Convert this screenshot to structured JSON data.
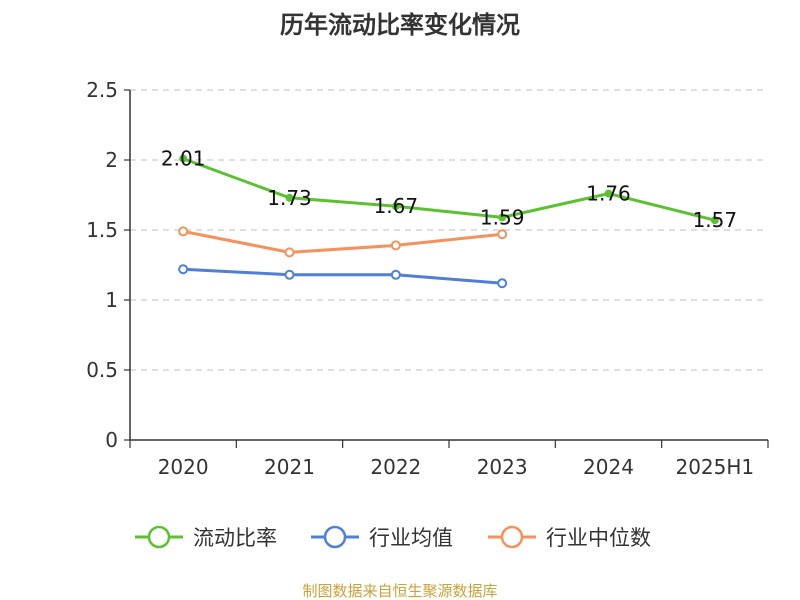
{
  "chart_data": {
    "type": "line",
    "title": "历年流动比率变化情况",
    "categories": [
      "2020",
      "2021",
      "2022",
      "2023",
      "2024",
      "2025H1"
    ],
    "ylim": [
      0,
      2.5
    ],
    "yticks": [
      "0",
      "0.5",
      "1",
      "1.5",
      "2",
      "2.5"
    ],
    "grid": true,
    "legend_position": "bottom",
    "series": [
      {
        "name": "流动比率",
        "color": "#5cc130",
        "values": [
          2.01,
          1.73,
          1.67,
          1.59,
          1.76,
          1.57
        ],
        "labels": [
          "2.01",
          "1.73",
          "1.67",
          "1.59",
          "1.76",
          "1.57"
        ]
      },
      {
        "name": "行业均值",
        "color": "#4f7fd9",
        "values": [
          1.22,
          1.18,
          1.18,
          1.12,
          null,
          null
        ]
      },
      {
        "name": "行业中位数",
        "color": "#f5915c",
        "values": [
          1.49,
          1.34,
          1.39,
          1.47,
          null,
          null
        ]
      }
    ]
  },
  "footer": {
    "source": "制图数据来自恒生聚源数据库"
  }
}
